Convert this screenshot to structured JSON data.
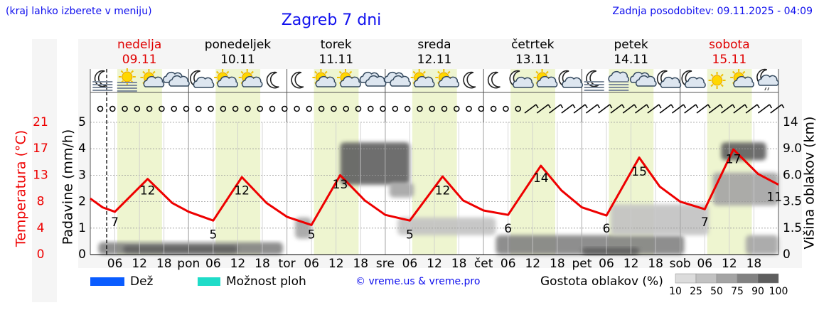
{
  "header": {
    "note": "(kraj lahko izberete v meniju)",
    "title": "Zagreb 7 dni",
    "updated": "Zadnja posodobitev: 09.11.2025 - 04:09"
  },
  "chart_data": {
    "type": "meteogram",
    "xlim": [
      0,
      168
    ],
    "xticks": [
      {
        "value": 6,
        "label": "06"
      },
      {
        "value": 12,
        "label": "12"
      },
      {
        "value": 18,
        "label": "18"
      },
      {
        "value": 24,
        "label": "pon"
      },
      {
        "value": 30,
        "label": "06"
      },
      {
        "value": 36,
        "label": "12"
      },
      {
        "value": 42,
        "label": "18"
      },
      {
        "value": 48,
        "label": "tor"
      },
      {
        "value": 54,
        "label": "06"
      },
      {
        "value": 60,
        "label": "12"
      },
      {
        "value": 66,
        "label": "18"
      },
      {
        "value": 72,
        "label": "sre"
      },
      {
        "value": 78,
        "label": "06"
      },
      {
        "value": 84,
        "label": "12"
      },
      {
        "value": 90,
        "label": "18"
      },
      {
        "value": 96,
        "label": "čet"
      },
      {
        "value": 102,
        "label": "06"
      },
      {
        "value": 108,
        "label": "12"
      },
      {
        "value": 114,
        "label": "18"
      },
      {
        "value": 120,
        "label": "pet"
      },
      {
        "value": 126,
        "label": "06"
      },
      {
        "value": 132,
        "label": "12"
      },
      {
        "value": 138,
        "label": "18"
      },
      {
        "value": 144,
        "label": "sob"
      },
      {
        "value": 150,
        "label": "06"
      },
      {
        "value": 156,
        "label": "12"
      },
      {
        "value": 162,
        "label": "18"
      }
    ],
    "days": [
      {
        "name": "nedelja",
        "date": "09.11",
        "color": "#e00000"
      },
      {
        "name": "ponedeljek",
        "date": "10.11",
        "color": "#000000"
      },
      {
        "name": "torek",
        "date": "11.11",
        "color": "#000000"
      },
      {
        "name": "sreda",
        "date": "12.11",
        "color": "#000000"
      },
      {
        "name": "četrtek",
        "date": "13.11",
        "color": "#000000"
      },
      {
        "name": "petek",
        "date": "14.11",
        "color": "#000000"
      },
      {
        "name": "sobota",
        "date": "15.11",
        "color": "#e00000"
      }
    ],
    "daylight": [
      6.6,
      17.5
    ],
    "now": 4,
    "grid": true,
    "ylabel": "Padavine (mm/h)",
    "ylim": [
      0,
      5
    ],
    "yticks": [
      0,
      1,
      2,
      3,
      4,
      5
    ],
    "tlabel": "Temperatura (°C)",
    "tlim": [
      0,
      21
    ],
    "tticks": [
      0,
      {
        "value": 4.2,
        "label": "4"
      },
      {
        "value": 8.4,
        "label": "8"
      },
      {
        "value": 12.6,
        "label": "13"
      },
      {
        "value": 16.8,
        "label": "17"
      },
      21
    ],
    "y2label": "Višina oblakov (km)",
    "y2scale": "piecewise",
    "y2ticks": [
      0,
      1.5,
      3.5,
      {
        "value": 6,
        "label": "6.0"
      },
      {
        "value": 9,
        "label": "9.0"
      },
      14
    ],
    "temperature": {
      "color": "#ee0000",
      "x": [
        0,
        3,
        6,
        14,
        20,
        24,
        30,
        37,
        43,
        48,
        54,
        61,
        67,
        72,
        78,
        86,
        91,
        96,
        102,
        110,
        115,
        120,
        126,
        134,
        139,
        144,
        150,
        157,
        163,
        168
      ],
      "values": [
        8.9,
        7.5,
        6.8,
        12,
        8.2,
        6.8,
        5.4,
        12.3,
        8.2,
        6,
        4.7,
        12.6,
        8.6,
        6.3,
        5.4,
        12.4,
        8.6,
        7,
        6.3,
        14.1,
        10.2,
        7.5,
        6.2,
        15.4,
        10.8,
        8.4,
        7.2,
        16.7,
        12.8,
        11.1
      ]
    },
    "temperature_labels": [
      {
        "x": 6,
        "value": 7
      },
      {
        "x": 14,
        "value": 12
      },
      {
        "x": 30,
        "value": 5
      },
      {
        "x": 37,
        "value": 12
      },
      {
        "x": 54,
        "value": 5
      },
      {
        "x": 61,
        "value": 13
      },
      {
        "x": 78,
        "value": 5
      },
      {
        "x": 86,
        "value": 12
      },
      {
        "x": 102,
        "value": 6
      },
      {
        "x": 110,
        "value": 14
      },
      {
        "x": 126,
        "value": 6
      },
      {
        "x": 134,
        "value": 15
      },
      {
        "x": 150,
        "value": 7
      },
      {
        "x": 157,
        "value": 17
      },
      {
        "x": 167,
        "value": 11
      }
    ],
    "precipitation_legend": [
      {
        "name": "Dež",
        "color": "#0a5cff"
      },
      {
        "name": "Možnost ploh",
        "color": "#1fdcc8"
      }
    ],
    "clouds": {
      "label": "Gostota oblakov (%)",
      "ticks": [
        10,
        25,
        50,
        75,
        90,
        100
      ],
      "colors": [
        "#dcdcdc",
        "#c2c2c2",
        "#a4a4a4",
        "#828282",
        "#5e5e5e"
      ],
      "patches": [
        {
          "x": [
            2,
            47
          ],
          "y2": [
            0,
            0.7
          ],
          "density": 75
        },
        {
          "x": [
            8,
            36
          ],
          "y2": [
            0.1,
            0.5
          ],
          "density": 90
        },
        {
          "x": [
            50,
            54
          ],
          "y2": [
            0.9,
            2.3
          ],
          "density": 50
        },
        {
          "x": [
            61,
            78
          ],
          "y2": [
            5.1,
            10.2
          ],
          "density": 90
        },
        {
          "x": [
            73,
            79
          ],
          "y2": [
            3.9,
            5.3
          ],
          "density": 50
        },
        {
          "x": [
            75,
            99
          ],
          "y2": [
            1.1,
            2.3
          ],
          "density": 25
        },
        {
          "x": [
            99,
            145
          ],
          "y2": [
            0,
            1.1
          ],
          "density": 75
        },
        {
          "x": [
            120,
            134
          ],
          "y2": [
            0,
            0.4
          ],
          "density": 90
        },
        {
          "x": [
            127,
            151
          ],
          "y2": [
            1.1,
            3.3
          ],
          "density": 25
        },
        {
          "x": [
            152,
            168
          ],
          "y2": [
            3.2,
            6.3
          ],
          "density": 50
        },
        {
          "x": [
            154,
            165
          ],
          "y2": [
            7.7,
            10.2
          ],
          "density": 90
        },
        {
          "x": [
            160,
            168
          ],
          "y2": [
            0,
            1.1
          ],
          "density": 50
        }
      ]
    },
    "weather_icons": [
      "moon-fog",
      "sun-fog",
      "partly",
      "cloudy",
      "moon-cloud",
      "partly",
      "partly",
      "moon",
      "moon",
      "partly",
      "partly",
      "cloudy",
      "cloudy",
      "partly",
      "partly",
      "moon",
      "moon",
      "moon-cloud",
      "partly",
      "moon-cloud",
      "moon-fog",
      "fog",
      "cloudy",
      "moon-cloud",
      "moon-cloud",
      "sun",
      "partly",
      "moon-rain"
    ],
    "wind": [
      "calm",
      "calm",
      "calm",
      "calm",
      "calm",
      "calm",
      "calm",
      "calm",
      "calm",
      "calm",
      "calm",
      "calm",
      "calm",
      "calm",
      "calm",
      "calm",
      "calm",
      "calm",
      "calm",
      "calm",
      "calm",
      "calm",
      "calm",
      "calm",
      "calm",
      "calm",
      "calm",
      "calm",
      "calm",
      "calm",
      "calm",
      "calm",
      "calm",
      "calm",
      "calm",
      "barb",
      "barb",
      "barb",
      "barb",
      "barb",
      "barb",
      "barb",
      "barb",
      "barb",
      "barb",
      "barb",
      "barb",
      "barb",
      "barb",
      "barb",
      "barb",
      "barb",
      "barb",
      "barb",
      "barb",
      "barb"
    ],
    "credit": "© vreme.us & vreme.pro"
  }
}
